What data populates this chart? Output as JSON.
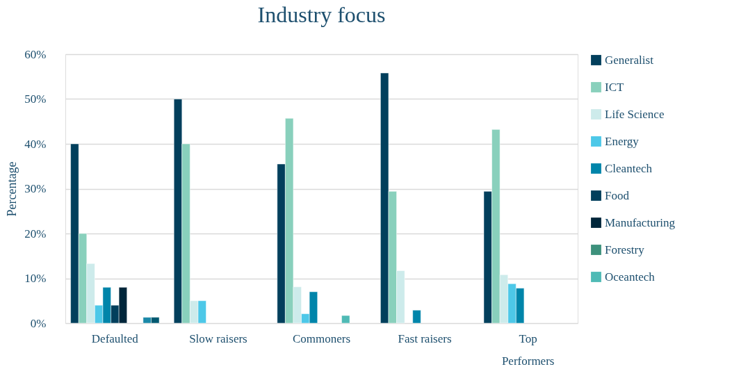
{
  "chart_data": {
    "type": "bar",
    "title": "Industry focus",
    "ylabel": "Percentage",
    "categories": [
      "Defaulted",
      "Slow raisers",
      "Commoners",
      "Fast raisers",
      "Top Performers"
    ],
    "series": [
      {
        "name": "Generalist",
        "color": "#023f5c",
        "values": [
          40,
          50,
          35.5,
          55.8,
          29.4
        ]
      },
      {
        "name": "ICT",
        "color": "#89d0bc",
        "values": [
          20,
          40,
          45.7,
          29.4,
          43.2
        ]
      },
      {
        "name": "Life Science",
        "color": "#cdebeb",
        "values": [
          13.3,
          5,
          8.1,
          11.7,
          10.8
        ]
      },
      {
        "name": "Energy",
        "color": "#4dc8e8",
        "values": [
          4,
          5,
          2.1,
          null,
          8.8
        ]
      },
      {
        "name": "Cleantech",
        "color": "#0085aa",
        "values": [
          8,
          null,
          7,
          2.9,
          7.8
        ]
      },
      {
        "name": "Food",
        "color": "#023f5c",
        "values": [
          4,
          null,
          null,
          null,
          null
        ]
      },
      {
        "name": "Manufacturing",
        "color": "#00263a",
        "values": [
          8,
          null,
          null,
          null,
          null
        ]
      },
      {
        "name": "Forestry",
        "color": "#3d917c",
        "values": [
          null,
          null,
          null,
          null,
          null
        ]
      },
      {
        "name": "Oceantech",
        "color": "#4fbab5",
        "values": [
          null,
          null,
          1.7,
          null,
          null
        ]
      },
      {
        "color": "#1a88a8",
        "values": [
          1.3,
          null,
          null,
          null,
          null
        ]
      },
      {
        "color": "#005870",
        "values": [
          1.3,
          null,
          null,
          null,
          null
        ]
      }
    ],
    "ylim": [
      0,
      60
    ],
    "yticks": [
      {
        "value": 0,
        "label": "0%"
      },
      {
        "value": 10,
        "label": "10%"
      },
      {
        "value": 20,
        "label": "20%"
      },
      {
        "value": 30,
        "label": "30%"
      },
      {
        "value": 40,
        "label": "40%"
      },
      {
        "value": 50,
        "label": "50%"
      },
      {
        "value": 60,
        "label": "60%"
      }
    ],
    "grid": "y",
    "legend": "right"
  }
}
